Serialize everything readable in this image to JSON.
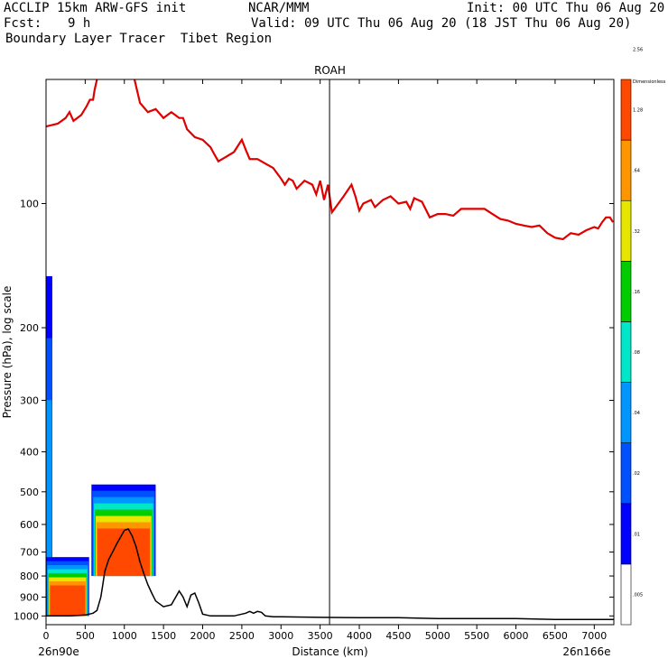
{
  "header": {
    "model": "ACCLIP 15km ARW-GFS init",
    "org": "NCAR/MMM",
    "init": "Init: 00 UTC Thu 06 Aug 20",
    "fcst_label": "Fcst:",
    "fcst_value": "9 h",
    "valid": "Valid: 09 UTC Thu 06 Aug 20 (18 JST Thu 06 Aug 20)",
    "product": "Boundary Layer Tracer  Tibet Region"
  },
  "chart_data": {
    "type": "cross-section",
    "title": "ROAH",
    "xlabel": "Distance (km)",
    "ylabel": "Pressure (hPa), log scale",
    "xlim": [
      0,
      7250
    ],
    "ylim": [
      1050,
      50
    ],
    "x_ticks": [
      0,
      500,
      1000,
      1500,
      2000,
      2500,
      3000,
      3500,
      4000,
      4500,
      5000,
      5500,
      6000,
      6500,
      7000
    ],
    "y_ticks": [
      100,
      200,
      300,
      400,
      500,
      600,
      700,
      800,
      900,
      1000
    ],
    "start_label": "26n90e",
    "end_label": "26n166e",
    "marker_line_x": 3620,
    "tropopause_series": {
      "name": "tropopause",
      "color": "#e00000",
      "x": [
        0,
        150,
        250,
        300,
        350,
        450,
        520,
        560,
        600,
        620,
        650,
        700,
        740,
        760,
        800,
        880,
        900,
        950,
        1000,
        1050,
        1100,
        1130,
        1200,
        1300,
        1400,
        1500,
        1600,
        1700,
        1750,
        1800,
        1900,
        2000,
        2100,
        2150,
        2200,
        2300,
        2400,
        2500,
        2550,
        2600,
        2700,
        2800,
        2900,
        3000,
        3050,
        3100,
        3150,
        3200,
        3300,
        3400,
        3450,
        3500,
        3550,
        3600,
        3650,
        3700,
        3800,
        3900,
        3950,
        4000,
        4050,
        4100,
        4150,
        4200,
        4300,
        4400,
        4500,
        4600,
        4650,
        4700,
        4800,
        4900,
        5000,
        5100,
        5200,
        5300,
        5400,
        5500,
        5600,
        5700,
        5800,
        5900,
        6000,
        6100,
        6200,
        6300,
        6400,
        6500,
        6600,
        6700,
        6800,
        6900,
        7000,
        7050,
        7100,
        7150,
        7200,
        7240
      ],
      "y": [
        65,
        64,
        62,
        60,
        63,
        61,
        58,
        56,
        56,
        53,
        50,
        49,
        45,
        44,
        40,
        39,
        36,
        35,
        38,
        42,
        45,
        50,
        57,
        60,
        59,
        62,
        60,
        62,
        62,
        66,
        69,
        70,
        73,
        76,
        79,
        77,
        75,
        70,
        74,
        78,
        78,
        80,
        82,
        87,
        90,
        87,
        88,
        92,
        88,
        90,
        95,
        88,
        98,
        90,
        105,
        102,
        96,
        90,
        96,
        104,
        100,
        99,
        98,
        102,
        98,
        96,
        100,
        99,
        103,
        97,
        99,
        108,
        106,
        106,
        107,
        103,
        103,
        103,
        103,
        106,
        109,
        110,
        112,
        113,
        114,
        113,
        118,
        121,
        122,
        118,
        119,
        116,
        114,
        115,
        111,
        108,
        108,
        111
      ]
    },
    "terrain_series": {
      "name": "terrain",
      "color": "#000000",
      "x": [
        0,
        100,
        200,
        300,
        400,
        500,
        550,
        600,
        650,
        700,
        720,
        750,
        800,
        850,
        900,
        950,
        1000,
        1050,
        1100,
        1150,
        1200,
        1250,
        1300,
        1350,
        1400,
        1500,
        1600,
        1700,
        1750,
        1800,
        1850,
        1900,
        1950,
        2000,
        2100,
        2200,
        2300,
        2400,
        2500,
        2550,
        2600,
        2650,
        2700,
        2750,
        2800,
        2900,
        3000,
        3500,
        4000,
        4500,
        5000,
        5500,
        6000,
        6500,
        7000,
        7250
      ],
      "y": [
        1000,
        1000,
        1000,
        1000,
        998,
        995,
        990,
        985,
        970,
        900,
        850,
        780,
        730,
        700,
        670,
        645,
        620,
        615,
        640,
        680,
        740,
        790,
        840,
        880,
        920,
        950,
        940,
        870,
        900,
        950,
        890,
        880,
        930,
        990,
        1000,
        1000,
        1000,
        1000,
        990,
        985,
        975,
        985,
        975,
        980,
        1000,
        1005,
        1005,
        1008,
        1010,
        1010,
        1015,
        1015,
        1015,
        1020,
        1020,
        1020
      ]
    },
    "tracer_plumes": [
      {
        "x_range": [
          0,
          80
        ],
        "p_top": 150,
        "p_bottom": 990,
        "max_level": ".04"
      },
      {
        "x_range": [
          0,
          550
        ],
        "p_top": 720,
        "p_bottom": 1000,
        "max_level": "1.28"
      },
      {
        "x_range": [
          580,
          1400
        ],
        "p_top": 480,
        "p_bottom": 800,
        "max_level": "1.28"
      }
    ],
    "colorbar": {
      "units": "Dimensionless",
      "levels": [
        ".005",
        ".01",
        ".02",
        ".04",
        ".08",
        ".16",
        ".32",
        ".64",
        "1.28",
        "2.56"
      ],
      "colors": [
        "#ffffff",
        "#0000ff",
        "#0050ff",
        "#0096ff",
        "#00e6c8",
        "#00cc00",
        "#e6e600",
        "#ff9600",
        "#ff4800"
      ]
    }
  }
}
